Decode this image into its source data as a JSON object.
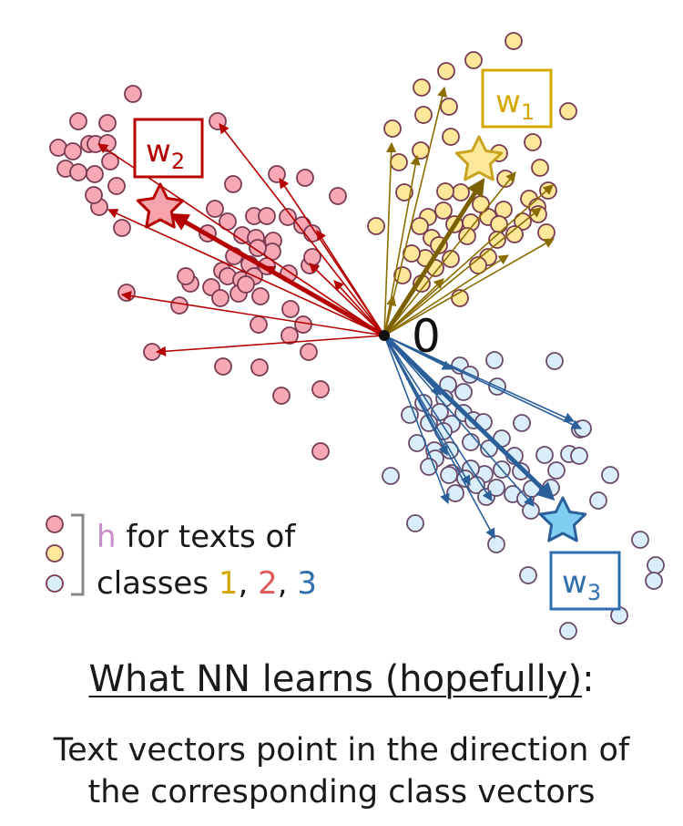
{
  "colors": {
    "class1_fill": "#fde89a",
    "class1_stroke": "#c9a320",
    "class1_arrow": "#8a6c00",
    "class1_label": "#d4a800",
    "class2_fill": "#f6a8b4",
    "class2_stroke": "#7a3a52",
    "class2_arrow": "#b40000",
    "class2_label": "#e05a5a",
    "class3_fill": "#d9eef8",
    "class3_stroke": "#5a4a70",
    "class3_arrow": "#2a5f9a",
    "class3_label": "#2f6fb0",
    "h_letter": "#c890c8",
    "text": "#1a1a1a"
  },
  "origin_label": "0",
  "class_vectors": [
    {
      "name": "w",
      "sub": "1",
      "color_key": "class1"
    },
    {
      "name": "w",
      "sub": "2",
      "color_key": "class2"
    },
    {
      "name": "w",
      "sub": "3",
      "color_key": "class3"
    }
  ],
  "legend": {
    "h_letter": "h",
    "line1_rest": " for texts of",
    "line2_prefix": "classes ",
    "num1": "1",
    "sep1": ", ",
    "num2": "2",
    "sep2": ", ",
    "num3": "3"
  },
  "caption": {
    "title": "What NN learns (hopefully)",
    "colon": ":",
    "line1": "Text vectors point in the direction of",
    "line2": "the corresponding class vectors"
  },
  "icons": [
    "star-icon",
    "legend-bracket-icon"
  ]
}
